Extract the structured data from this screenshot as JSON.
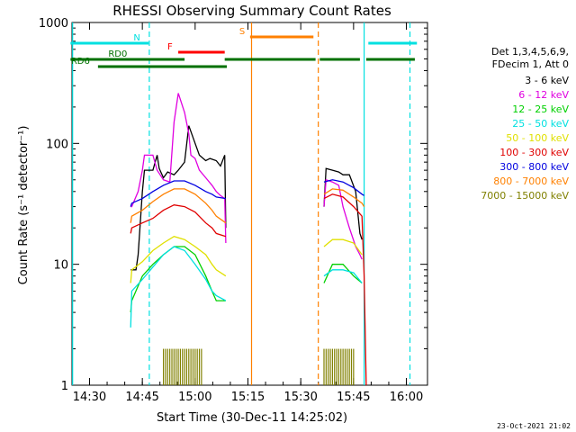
{
  "colors": {
    "bg": "#ffffff",
    "axis": "#000000",
    "black": "#000000",
    "magenta": "#e000e0",
    "green": "#00d000",
    "cyan": "#00e0e0",
    "yellow": "#e0e000",
    "red": "#e00000",
    "blue": "#0000e0",
    "orange": "#ff8000",
    "olive": "#808000",
    "darkgreen": "#007000"
  },
  "header": {
    "title": "RHESSI Observing Summary Count Rates",
    "timestamp": "23-Oct-2021 21:02"
  },
  "legend": {
    "header1": "Det 1,3,4,5,6,9,",
    "header2": "FDecim 1, Att 0",
    "entries": [
      {
        "label": "3 - 6 keV",
        "color": "#000000"
      },
      {
        "label": "6 - 12 keV",
        "color": "#e000e0"
      },
      {
        "label": "12 - 25 keV",
        "color": "#00d000"
      },
      {
        "label": "25 - 50 keV",
        "color": "#00e0e0"
      },
      {
        "label": "50 - 100 keV",
        "color": "#e0e000"
      },
      {
        "label": "100 - 300 keV",
        "color": "#e00000"
      },
      {
        "label": "300 - 800 keV",
        "color": "#0000e0"
      },
      {
        "label": "800 - 7000 keV",
        "color": "#ff8000"
      },
      {
        "label": "7000 - 15000 keV",
        "color": "#808000"
      }
    ]
  },
  "flags": [
    {
      "label": "N",
      "color": "#00e0e0",
      "segments": [
        [
          14.41,
          14.78
        ],
        [
          15.82,
          16.05
        ]
      ]
    },
    {
      "label": "F",
      "color": "#ff0000",
      "segments": [
        [
          14.92,
          15.14
        ]
      ]
    },
    {
      "label": "S",
      "color": "#ff8000",
      "segments": [
        [
          15.26,
          15.56
        ]
      ]
    },
    {
      "label": "RD0",
      "color": "#007000",
      "segments": [
        [
          14.41,
          14.95
        ],
        [
          15.14,
          15.57
        ],
        [
          15.59,
          15.78
        ],
        [
          15.81,
          16.04
        ]
      ]
    },
    {
      "label": "RD6",
      "color": "#007000",
      "segments": [
        [
          14.54,
          15.15
        ]
      ]
    }
  ],
  "chart_data": {
    "type": "line",
    "title": "RHESSI Observing Summary Count Rates",
    "xlabel": "Start Time (30-Dec-11 14:25:02)",
    "ylabel": "Count Rate (s⁻¹ detector⁻¹)",
    "xlim": [
      14.417,
      16.1
    ],
    "ylim": [
      1,
      1000
    ],
    "yscale": "log",
    "x_ticks": [
      {
        "v": 14.5,
        "label": "14:30"
      },
      {
        "v": 14.75,
        "label": "14:45"
      },
      {
        "v": 15.0,
        "label": "15:00"
      },
      {
        "v": 15.25,
        "label": "15:15"
      },
      {
        "v": 15.5,
        "label": "15:30"
      },
      {
        "v": 15.75,
        "label": "15:45"
      },
      {
        "v": 16.0,
        "label": "16:00"
      }
    ],
    "y_ticks": [
      {
        "v": 1,
        "label": "1"
      },
      {
        "v": 10,
        "label": "10"
      },
      {
        "v": 100,
        "label": "100"
      },
      {
        "v": 1000,
        "label": "1000"
      }
    ],
    "vlines": [
      {
        "x": 14.42,
        "color": "#00e0e0",
        "dash": false
      },
      {
        "x": 14.783,
        "color": "#00e0e0",
        "dash": true
      },
      {
        "x": 15.267,
        "color": "#ff8000",
        "dash": false
      },
      {
        "x": 15.583,
        "color": "#ff8000",
        "dash": true
      },
      {
        "x": 15.8,
        "color": "#00e0e0",
        "dash": false
      },
      {
        "x": 16.017,
        "color": "#00e0e0",
        "dash": true
      }
    ],
    "series": [
      {
        "name": "3 - 6 keV",
        "color": "#000000",
        "x": [
          14.695,
          14.7,
          14.72,
          14.73,
          14.75,
          14.76,
          14.8,
          14.82,
          14.83,
          14.85,
          14.87,
          14.9,
          14.92,
          14.95,
          14.97,
          15.0,
          15.02,
          15.05,
          15.07,
          15.1,
          15.12,
          15.14,
          15.145,
          15.61,
          15.62,
          15.65,
          15.68,
          15.7,
          15.73,
          15.76,
          15.78,
          15.79
        ],
        "y": [
          9,
          9,
          9,
          12,
          40,
          60,
          60,
          80,
          62,
          52,
          58,
          55,
          60,
          70,
          140,
          100,
          80,
          72,
          75,
          72,
          65,
          80,
          20,
          30,
          62,
          60,
          58,
          55,
          55,
          40,
          18,
          16
        ]
      },
      {
        "name": "6 - 12 keV",
        "color": "#e000e0",
        "x": [
          14.695,
          14.7,
          14.73,
          14.75,
          14.76,
          14.8,
          14.82,
          14.85,
          14.88,
          14.9,
          14.92,
          14.95,
          14.97,
          14.98,
          15.0,
          15.02,
          15.05,
          15.08,
          15.1,
          15.12,
          15.14,
          15.145,
          15.61,
          15.62,
          15.65,
          15.68,
          15.7,
          15.73,
          15.76,
          15.78,
          15.79
        ],
        "y": [
          30,
          30,
          40,
          60,
          80,
          80,
          60,
          50,
          48,
          150,
          260,
          180,
          120,
          80,
          75,
          60,
          52,
          45,
          40,
          37,
          35,
          15,
          30,
          50,
          48,
          45,
          30,
          20,
          14,
          12,
          11
        ]
      },
      {
        "name": "12 - 25 keV",
        "color": "#00d000",
        "x": [
          14.695,
          14.7,
          14.75,
          14.8,
          14.85,
          14.9,
          14.95,
          15.0,
          15.05,
          15.08,
          15.1,
          15.145,
          15.61,
          15.65,
          15.7,
          15.75,
          15.79
        ],
        "y": [
          4,
          5,
          8,
          10,
          12,
          14,
          14,
          12,
          8,
          6,
          5,
          5,
          7,
          10,
          10,
          8,
          7
        ]
      },
      {
        "name": "25 - 50 keV",
        "color": "#00e0e0",
        "x": [
          14.695,
          14.7,
          14.75,
          14.8,
          14.85,
          14.9,
          14.95,
          15.0,
          15.05,
          15.08,
          15.1,
          15.145,
          15.61,
          15.65,
          15.7,
          15.75,
          15.79
        ],
        "y": [
          3,
          6,
          7.5,
          9.5,
          12,
          14,
          13,
          10,
          7.5,
          6,
          5.5,
          5,
          8,
          9,
          9,
          8.5,
          7
        ]
      },
      {
        "name": "50 - 100 keV",
        "color": "#e0e000",
        "x": [
          14.695,
          14.7,
          14.75,
          14.8,
          14.85,
          14.9,
          14.95,
          15.0,
          15.05,
          15.08,
          15.1,
          15.145,
          15.61,
          15.65,
          15.7,
          15.75,
          15.79
        ],
        "y": [
          7,
          9,
          10.5,
          13,
          15,
          17,
          16,
          14,
          12,
          10,
          9,
          8,
          14,
          16,
          16,
          15,
          12
        ]
      },
      {
        "name": "100 - 300 keV",
        "color": "#e00000",
        "x": [
          14.695,
          14.7,
          14.75,
          14.8,
          14.85,
          14.9,
          14.95,
          15.0,
          15.05,
          15.08,
          15.1,
          15.145,
          15.61,
          15.65,
          15.7,
          15.75,
          15.79,
          15.8,
          15.81
        ],
        "y": [
          18,
          20,
          22,
          24,
          28,
          31,
          30,
          27,
          22,
          20,
          18,
          17,
          35,
          38,
          36,
          30,
          25,
          8,
          1
        ]
      },
      {
        "name": "300 - 800 keV",
        "color": "#0000e0",
        "x": [
          14.695,
          14.7,
          14.75,
          14.8,
          14.85,
          14.9,
          14.95,
          15.0,
          15.05,
          15.08,
          15.1,
          15.145,
          15.61,
          15.65,
          15.7,
          15.75,
          15.79,
          15.8
        ],
        "y": [
          30,
          32,
          35,
          40,
          45,
          49,
          49,
          45,
          40,
          38,
          36,
          35,
          48,
          50,
          48,
          43,
          38,
          37
        ]
      },
      {
        "name": "800 - 7000 keV",
        "color": "#ff8000",
        "x": [
          14.695,
          14.7,
          14.75,
          14.8,
          14.85,
          14.9,
          14.95,
          15.0,
          15.05,
          15.08,
          15.1,
          15.145,
          15.61,
          15.65,
          15.7,
          15.75,
          15.79,
          15.8
        ],
        "y": [
          22,
          25,
          28,
          33,
          38,
          42,
          42,
          38,
          32,
          28,
          25,
          22,
          38,
          42,
          41,
          36,
          32,
          30
        ]
      }
    ],
    "spikes": {
      "name": "7000 - 15000 keV",
      "color": "#808000",
      "x": [
        14.85,
        14.86,
        14.87,
        14.88,
        14.89,
        14.9,
        14.91,
        14.92,
        14.93,
        14.94,
        14.95,
        14.96,
        14.97,
        14.98,
        14.99,
        15.0,
        15.01,
        15.02,
        15.03,
        15.61,
        15.62,
        15.63,
        15.64,
        15.65,
        15.66,
        15.67,
        15.68,
        15.69,
        15.7,
        15.71,
        15.72,
        15.73,
        15.74,
        15.75
      ],
      "y": [
        2,
        2,
        2,
        2,
        2,
        2,
        2,
        2,
        2,
        2,
        2,
        2,
        2,
        2,
        2,
        2,
        2,
        2,
        2,
        2,
        2,
        2,
        2,
        2,
        2,
        2,
        2,
        2,
        2,
        2,
        2,
        2,
        2,
        2
      ]
    }
  }
}
